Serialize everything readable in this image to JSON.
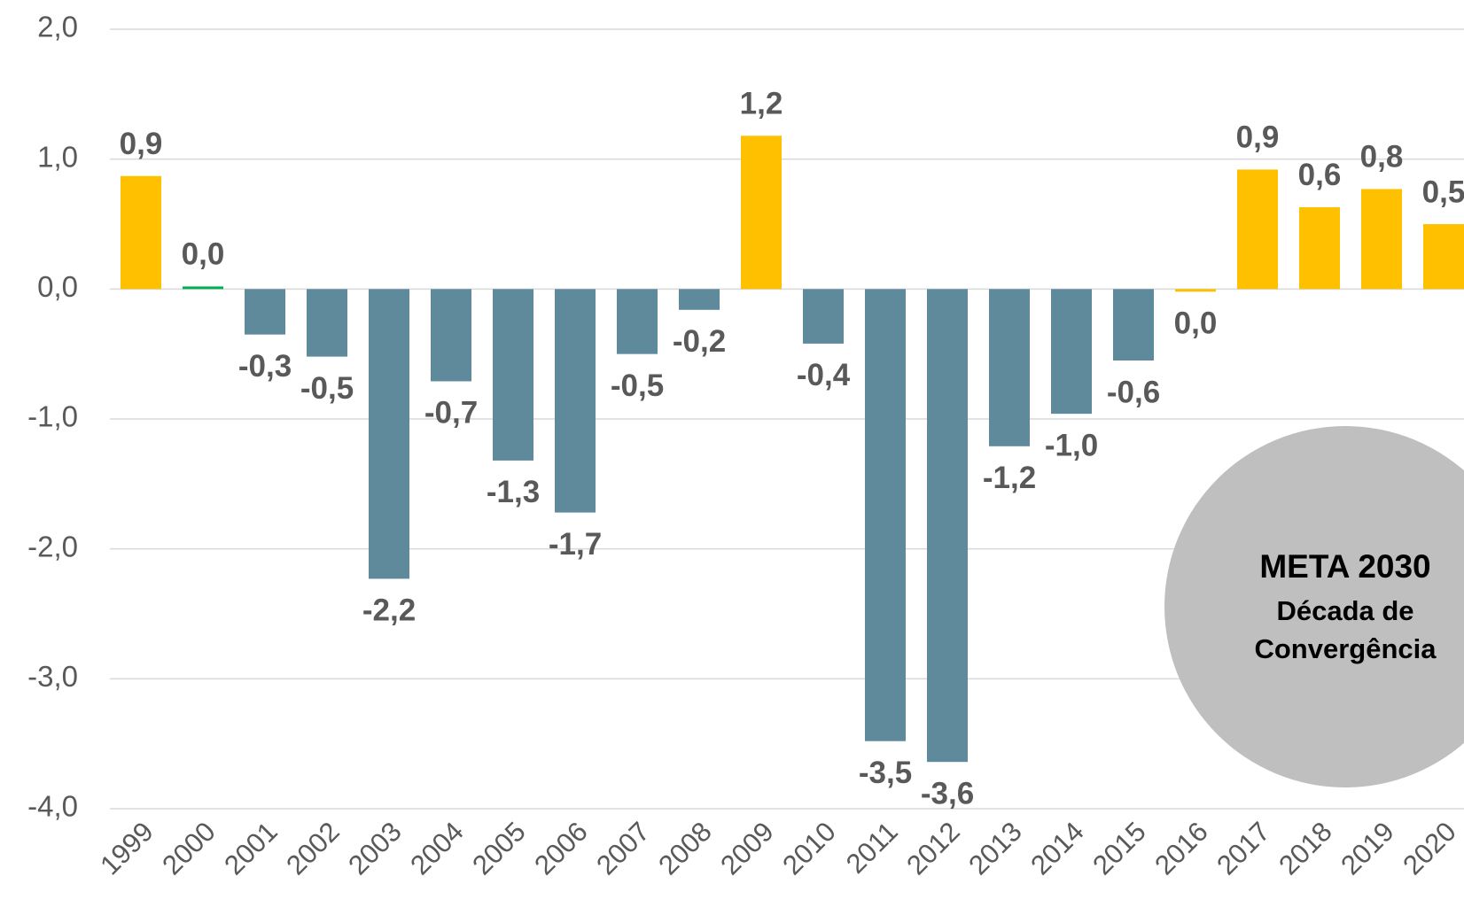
{
  "chart_data": {
    "type": "bar",
    "categories": [
      "1999",
      "2000",
      "2001",
      "2002",
      "2003",
      "2004",
      "2005",
      "2006",
      "2007",
      "2008",
      "2009",
      "2010",
      "2011",
      "2012",
      "2013",
      "2014",
      "2015",
      "2016",
      "2017",
      "2018",
      "2019",
      "2020"
    ],
    "values": [
      0.87,
      0.02,
      -0.35,
      -0.52,
      -2.23,
      -0.71,
      -1.32,
      -1.72,
      -0.5,
      -0.16,
      1.18,
      -0.42,
      -3.48,
      -3.64,
      -1.21,
      -0.96,
      -0.55,
      -0.02,
      0.92,
      0.63,
      0.77,
      0.5
    ],
    "value_labels": [
      "0,9",
      "0,0",
      "-0,3",
      "-0,5",
      "-2,2",
      "-0,7",
      "-1,3",
      "-1,7",
      "-0,5",
      "-0,2",
      "1,2",
      "-0,4",
      "-3,5",
      "-3,6",
      "-1,2",
      "-1,0",
      "-0,6",
      "0,0",
      "0,9",
      "0,6",
      "0,8",
      "0,5"
    ],
    "colors": [
      "#FFC000",
      "#00B050",
      "#5F8A9C",
      "#5F8A9C",
      "#5F8A9C",
      "#5F8A9C",
      "#5F8A9C",
      "#5F8A9C",
      "#5F8A9C",
      "#5F8A9C",
      "#FFC000",
      "#5F8A9C",
      "#5F8A9C",
      "#5F8A9C",
      "#5F8A9C",
      "#5F8A9C",
      "#5F8A9C",
      "#FFC000",
      "#FFC000",
      "#FFC000",
      "#FFC000",
      "#FFC000"
    ],
    "ylim": [
      -4,
      2
    ],
    "yticks": [
      {
        "value": 2,
        "label": "2,0"
      },
      {
        "value": 1,
        "label": "1,0"
      },
      {
        "value": 0,
        "label": "0,0"
      },
      {
        "value": -1,
        "label": "-1,0"
      },
      {
        "value": -2,
        "label": "-2,0"
      },
      {
        "value": -3,
        "label": "-3,0"
      },
      {
        "value": -4,
        "label": "-4,0"
      }
    ],
    "grid": true,
    "annotation": {
      "title": "META 2030",
      "lines": [
        "Década de",
        "Convergência"
      ]
    }
  }
}
